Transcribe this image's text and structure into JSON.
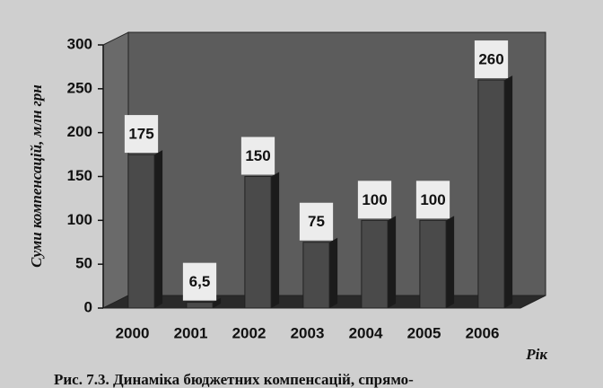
{
  "chart_data": {
    "type": "bar",
    "y_label": "Суми компенсацій, млн грн",
    "x_label": "Рік",
    "caption": "Рис. 7.3. Динаміка бюджетних компенсацій, спрямо-",
    "categories": [
      "2000",
      "2001",
      "2002",
      "2003",
      "2004",
      "2005",
      "2006"
    ],
    "values": [
      175,
      6.5,
      150,
      75,
      100,
      100,
      260
    ],
    "value_labels": [
      "175",
      "6,5",
      "150",
      "75",
      "100",
      "100",
      "260"
    ],
    "color": "#4a4a4a",
    "ylim": [
      0,
      300
    ],
    "yticks": [
      0,
      50,
      100,
      150,
      200,
      250,
      300
    ]
  }
}
